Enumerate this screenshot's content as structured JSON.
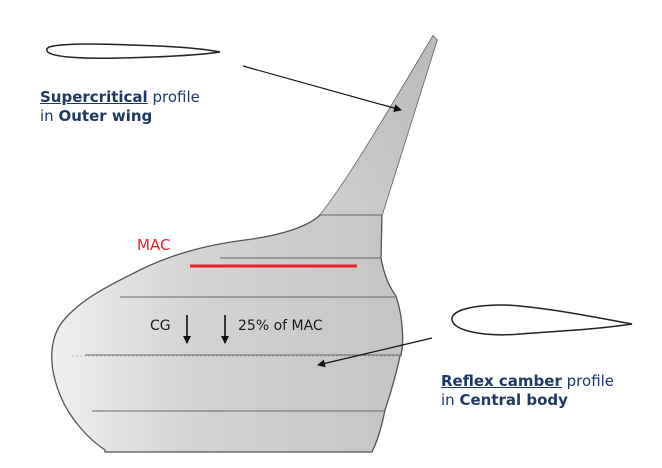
{
  "labels": {
    "outer_wing": {
      "term": "Supercritical",
      "suffix": "profile",
      "line2_prefix": "in",
      "line2_bold": "Outer wing"
    },
    "central_body": {
      "term": "Reflex camber",
      "suffix": "profile",
      "line2_prefix": "in",
      "line2_bold": "Central body"
    },
    "mac": "MAC",
    "cg": "CG",
    "mac_25": "25% of MAC"
  },
  "colors": {
    "wing_fill": "#c9c9c9",
    "wing_highlight": "#ececec",
    "outline": "#4a4a4a",
    "mac_line": "#e8202a",
    "label_text": "#1f3864"
  }
}
